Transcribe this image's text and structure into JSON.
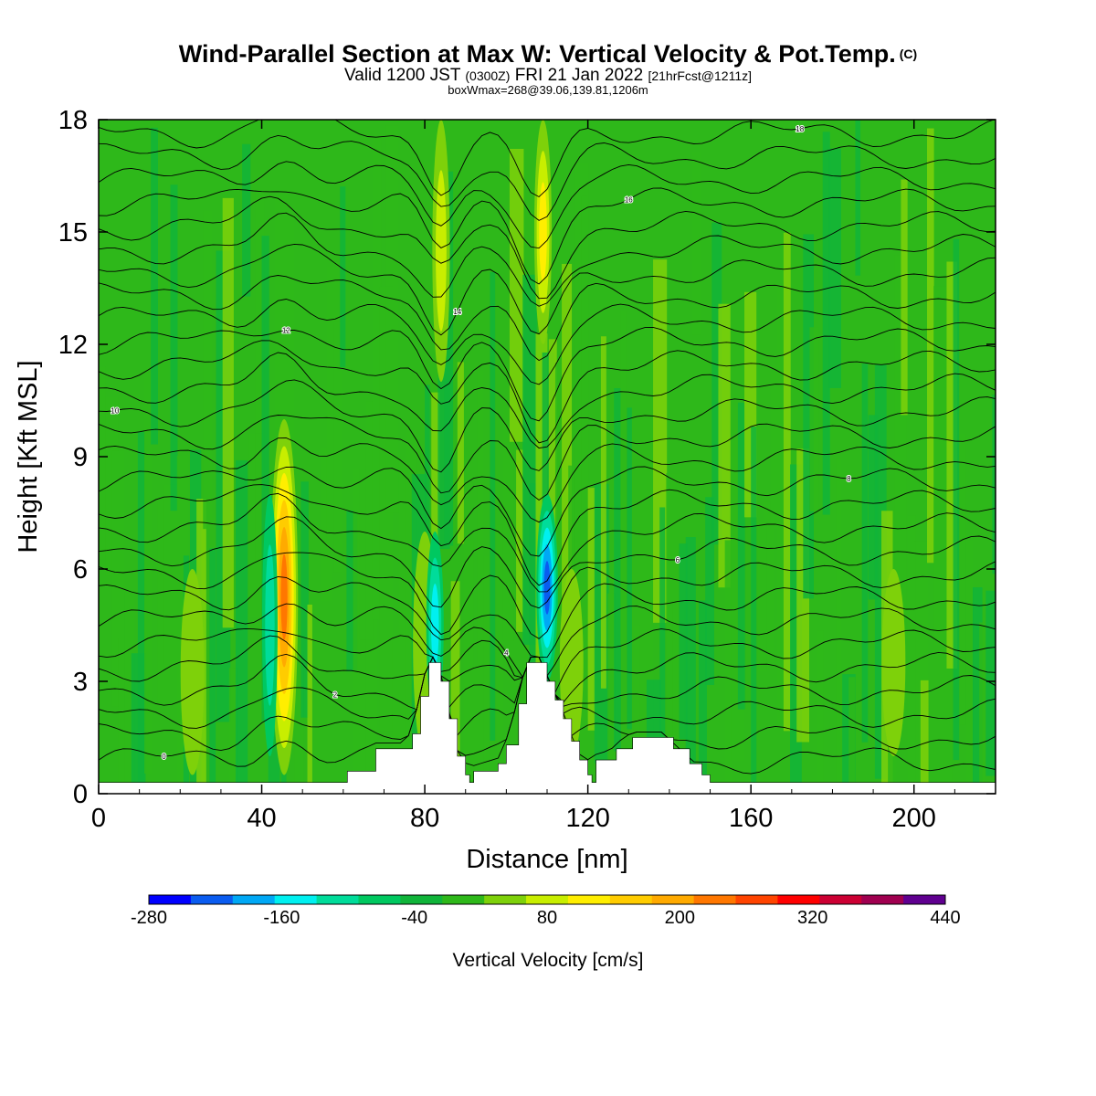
{
  "title": {
    "main": "Wind-Parallel Section at Max W: Vertical Velocity & Pot.Temp.",
    "mark": "(C)",
    "valid_prefix": "Valid 1200 JST",
    "valid_utc": "(0300Z)",
    "valid_date": "FRI 21 Jan 2022",
    "forecast": "[21hrFcst@1211z]",
    "boxinfo": "boxWmax=268@39.06,139.81,1206m"
  },
  "chart_data": {
    "type": "heatmap",
    "xlabel": "Distance [nm]",
    "ylabel": "Height [Kft MSL]",
    "xlim": [
      0,
      220
    ],
    "ylim": [
      0,
      18
    ],
    "x_ticks": [
      0,
      40,
      80,
      120,
      160,
      200
    ],
    "y_ticks": [
      0,
      3,
      6,
      9,
      12,
      15,
      18
    ],
    "colorbar": {
      "label": "Vertical Velocity [cm/s]",
      "min": -280,
      "max": 440,
      "step": 40,
      "tick_labels": [
        -280,
        -160,
        -40,
        80,
        200,
        320,
        440
      ],
      "colors": [
        "#0000ff",
        "#0a5cf0",
        "#00a8f5",
        "#00f0f0",
        "#00dc9a",
        "#00c860",
        "#10b43a",
        "#2eb81a",
        "#7ed10a",
        "#c8ee00",
        "#ffee00",
        "#ffcc00",
        "#ffaa00",
        "#ff7700",
        "#ff4400",
        "#ff0000",
        "#cc0033",
        "#a00050",
        "#600090"
      ]
    },
    "terrain": [
      [
        0,
        0.3
      ],
      [
        60,
        0.3
      ],
      [
        61,
        0.6
      ],
      [
        67,
        0.6
      ],
      [
        68,
        1.2
      ],
      [
        75,
        1.2
      ],
      [
        77,
        1.6
      ],
      [
        79,
        2.6
      ],
      [
        81,
        3.5
      ],
      [
        83,
        3.5
      ],
      [
        84,
        3.0
      ],
      [
        86,
        2.0
      ],
      [
        88,
        1.0
      ],
      [
        90,
        0.5
      ],
      [
        91,
        0.3
      ],
      [
        92,
        0.6
      ],
      [
        98,
        0.8
      ],
      [
        100,
        1.3
      ],
      [
        103,
        2.4
      ],
      [
        105,
        3.5
      ],
      [
        108,
        3.5
      ],
      [
        110,
        3.0
      ],
      [
        112,
        2.5
      ],
      [
        114,
        2.0
      ],
      [
        116,
        1.4
      ],
      [
        118,
        0.9
      ],
      [
        120,
        0.5
      ],
      [
        121,
        0.3
      ],
      [
        122,
        0.9
      ],
      [
        126,
        0.9
      ],
      [
        127,
        1.2
      ],
      [
        131,
        1.5
      ],
      [
        138,
        1.5
      ],
      [
        141,
        1.2
      ],
      [
        145,
        0.8
      ],
      [
        148,
        0.5
      ],
      [
        150,
        0.3
      ],
      [
        220,
        0.3
      ]
    ],
    "updraft_cores": [
      {
        "x": 45.5,
        "w": 5.0,
        "y0": 0.5,
        "y1": 10.0,
        "peak": 268
      },
      {
        "x": 84.0,
        "w": 2.5,
        "y0": 11.0,
        "y1": 18.0,
        "peak": 120
      },
      {
        "x": 109.0,
        "w": 2.5,
        "y0": 12.0,
        "y1": 18.0,
        "peak": 160
      },
      {
        "x": 80.0,
        "w": 4.0,
        "y0": 1.0,
        "y1": 7.0,
        "peak": 80
      },
      {
        "x": 116.0,
        "w": 4.0,
        "y0": 1.0,
        "y1": 6.0,
        "peak": 80
      },
      {
        "x": 23.0,
        "w": 4.0,
        "y0": 0.5,
        "y1": 6.0,
        "peak": 80
      },
      {
        "x": 195.0,
        "w": 4.0,
        "y0": 1.0,
        "y1": 6.0,
        "peak": 60
      }
    ],
    "downdraft_cores": [
      {
        "x": 82.5,
        "w": 2.5,
        "y0": 2.0,
        "y1": 7.0,
        "peak": -160
      },
      {
        "x": 110.0,
        "w": 3.5,
        "y0": 3.0,
        "y1": 8.0,
        "peak": -220
      },
      {
        "x": 42.0,
        "w": 2.0,
        "y0": 1.0,
        "y1": 8.0,
        "peak": -110
      }
    ],
    "theta_label_values": [
      "0",
      "2",
      "4",
      "6",
      "8",
      "10",
      "12",
      "14",
      "16",
      "18",
      "20"
    ]
  }
}
